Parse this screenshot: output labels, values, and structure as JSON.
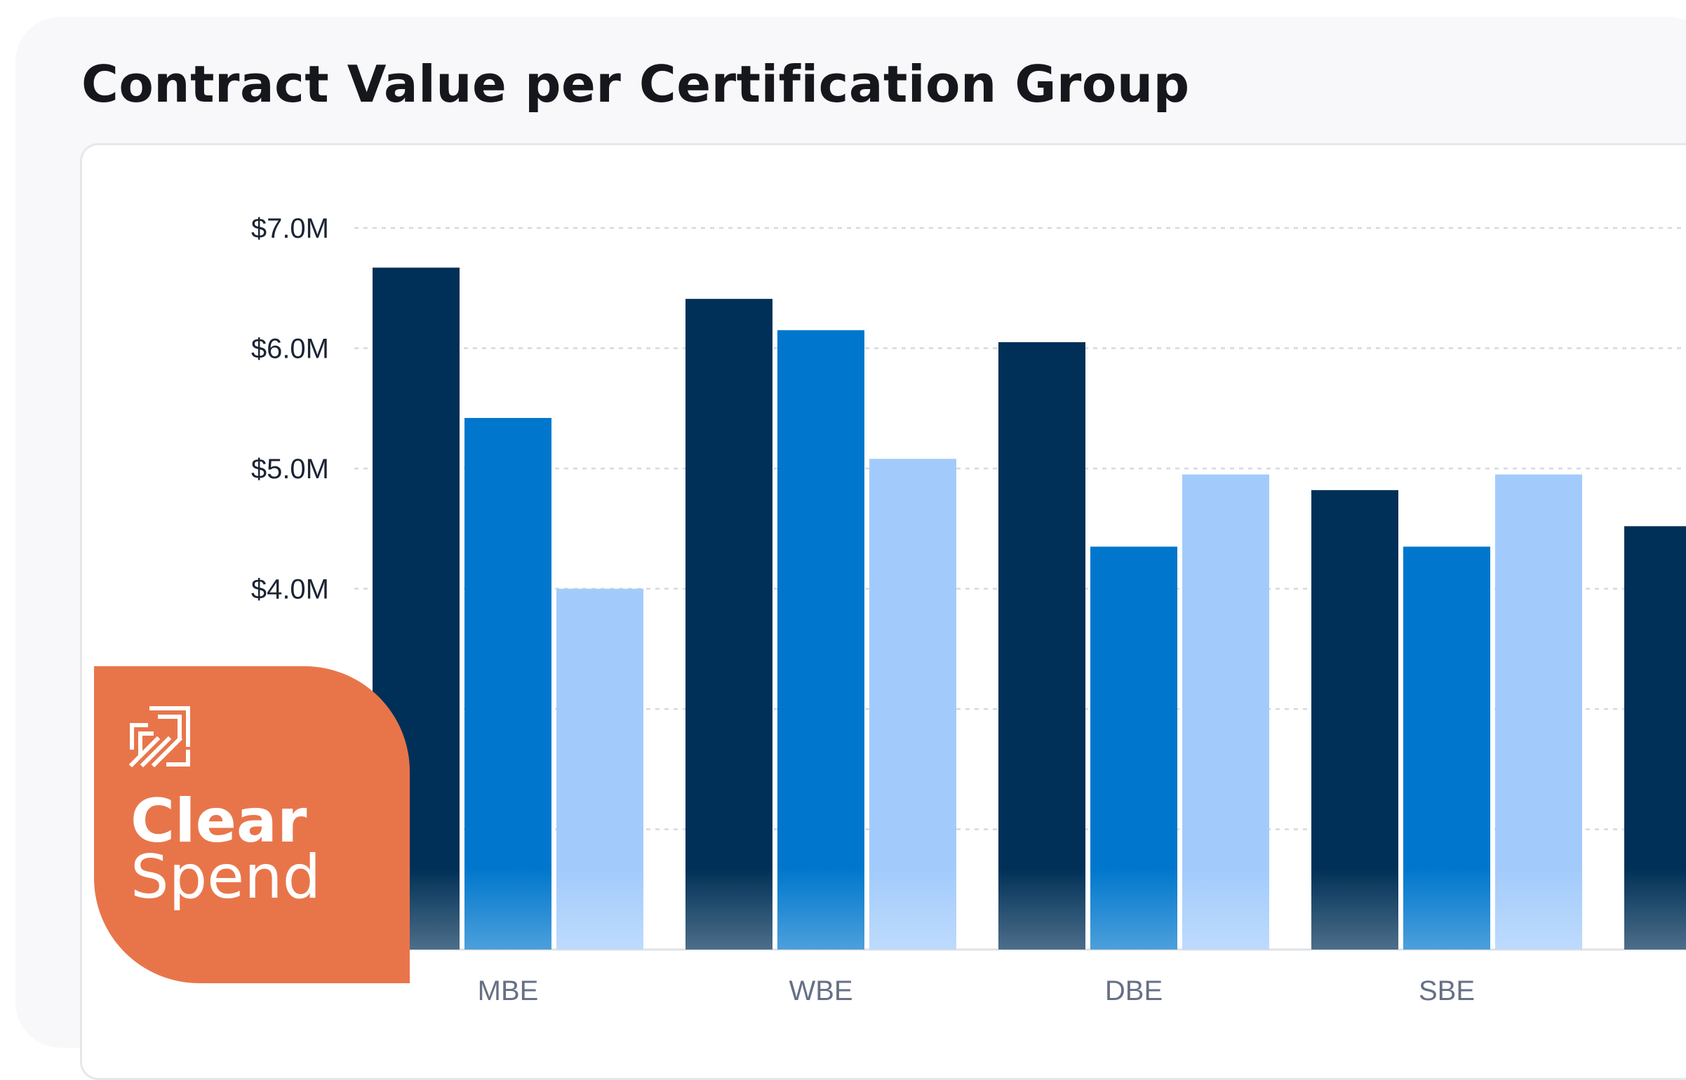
{
  "chart_data": {
    "type": "bar",
    "title": "Contract Value per Certification Group",
    "categories": [
      "MBE",
      "WBE",
      "DBE",
      "SBE"
    ],
    "series": [
      {
        "color": "#003057",
        "values": [
          6.67,
          6.41,
          6.05,
          4.82
        ]
      },
      {
        "color": "#0077cc",
        "values": [
          5.42,
          6.15,
          4.35,
          4.35
        ]
      },
      {
        "color": "#a2cbfc",
        "values": [
          4.0,
          5.08,
          4.95,
          4.95
        ]
      }
    ],
    "partial_category_value": 4.52,
    "y_ticks": [
      "$4.0M",
      "$5.0M",
      "$6.0M",
      "$7.0M"
    ],
    "y_tick_values": [
      4.0,
      5.0,
      6.0,
      7.0
    ],
    "ylim": [
      1.0,
      7.0
    ],
    "grid": true,
    "unit": "$M"
  },
  "logo": {
    "word1": "Clear",
    "word2": "Spend",
    "color": "#e8754a"
  }
}
